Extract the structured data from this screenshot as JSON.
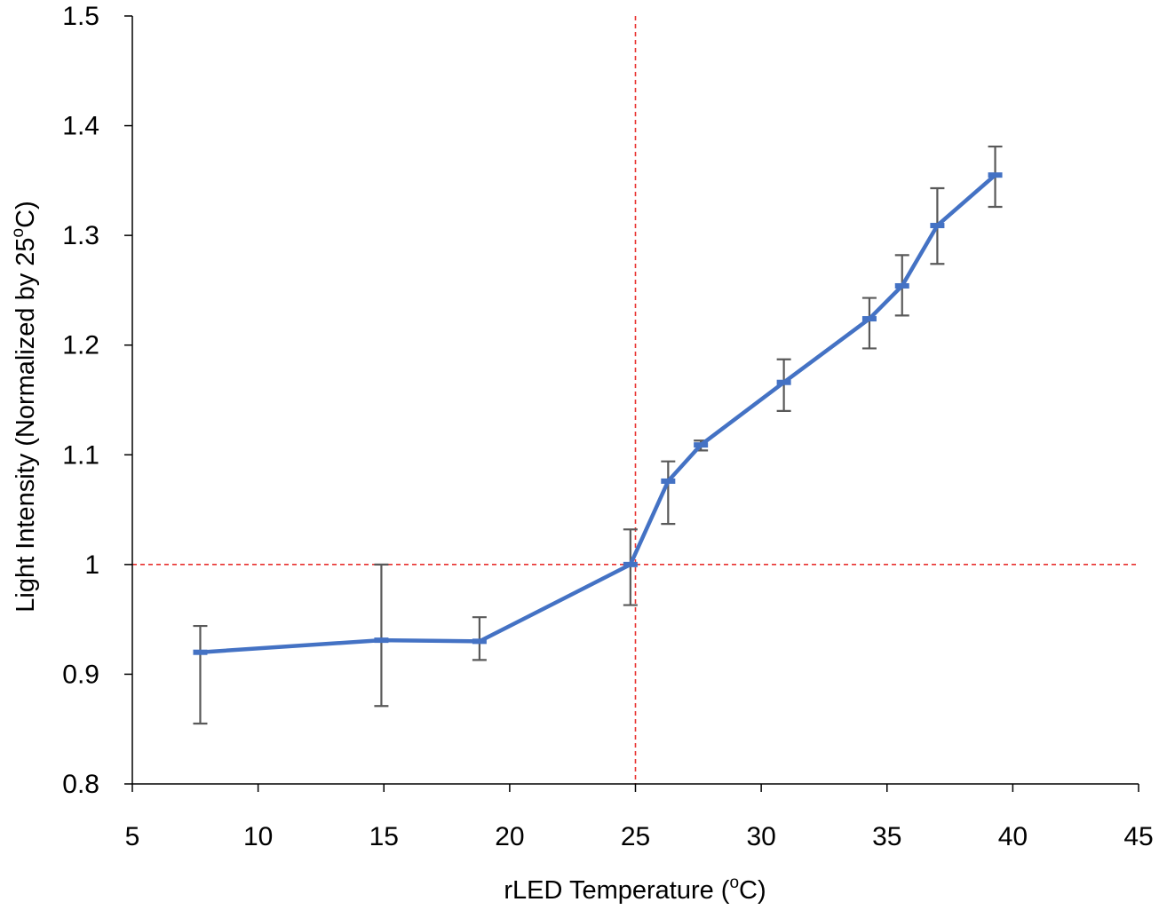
{
  "chart_data": {
    "type": "line",
    "title": "",
    "xlabel": "rLED Temperature (oC)",
    "xlabel_parts": {
      "before": "rLED Temperature (",
      "sup": "o",
      "after": "C)"
    },
    "ylabel": "Light Intensity (Normalized by 25oC)",
    "ylabel_parts": {
      "before": "Light Intensity (Normalized by 25",
      "sup": "o",
      "after": "C)"
    },
    "xlim": [
      5,
      45
    ],
    "ylim": [
      0.8,
      1.5
    ],
    "x_ticks": [
      5,
      10,
      15,
      20,
      25,
      30,
      35,
      40,
      45
    ],
    "x_tick_labels": [
      "5",
      "10",
      "15",
      "20",
      "25",
      "30",
      "35",
      "40",
      "45"
    ],
    "y_ticks": [
      0.8,
      0.9,
      1.0,
      1.1,
      1.2,
      1.3,
      1.4,
      1.5
    ],
    "y_tick_labels": [
      "0.8",
      "0.9",
      "1",
      "1.1",
      "1.2",
      "1.3",
      "1.4",
      "1.5"
    ],
    "grid": false,
    "legend": "none",
    "reference_lines": {
      "x": 25,
      "y": 1.0,
      "style": "dashed",
      "color": "#e8312f"
    },
    "series": [
      {
        "color": "#4472c4",
        "error_bar_color": "#595959",
        "points": [
          {
            "x": 7.7,
            "y": 0.92,
            "low": 0.855,
            "high": 0.944
          },
          {
            "x": 14.9,
            "y": 0.931,
            "low": 0.871,
            "high": 1.0
          },
          {
            "x": 18.8,
            "y": 0.93,
            "low": 0.913,
            "high": 0.952
          },
          {
            "x": 24.8,
            "y": 1.0,
            "low": 0.963,
            "high": 1.032
          },
          {
            "x": 26.3,
            "y": 1.076,
            "low": 1.037,
            "high": 1.094
          },
          {
            "x": 27.6,
            "y": 1.109,
            "low": 1.104,
            "high": 1.113
          },
          {
            "x": 30.9,
            "y": 1.166,
            "low": 1.14,
            "high": 1.187
          },
          {
            "x": 34.3,
            "y": 1.224,
            "low": 1.197,
            "high": 1.243
          },
          {
            "x": 35.6,
            "y": 1.254,
            "low": 1.227,
            "high": 1.282
          },
          {
            "x": 37.0,
            "y": 1.309,
            "low": 1.274,
            "high": 1.343
          },
          {
            "x": 39.3,
            "y": 1.355,
            "low": 1.326,
            "high": 1.381
          }
        ]
      }
    ]
  }
}
